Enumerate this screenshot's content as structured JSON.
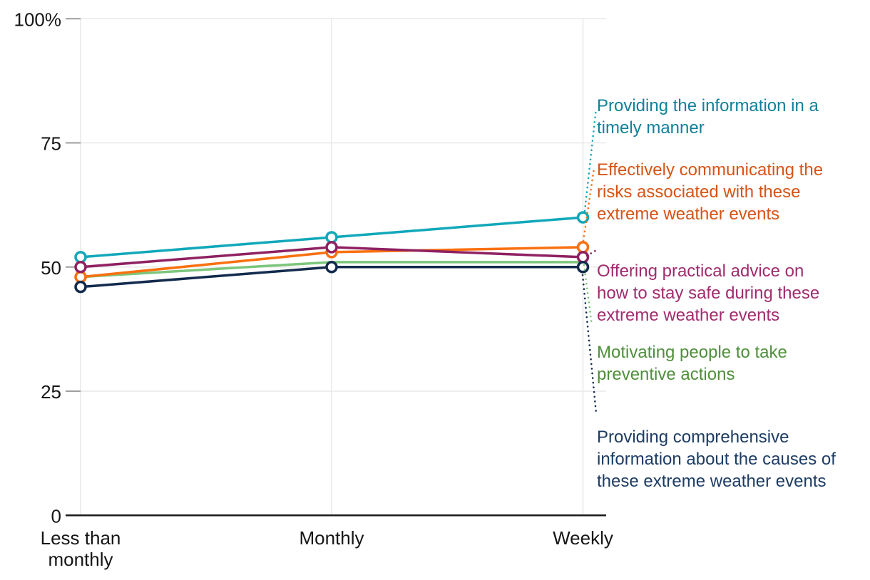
{
  "chart_data": {
    "type": "line",
    "title": "",
    "xlabel": "",
    "ylabel": "",
    "ylim": [
      0,
      100
    ],
    "grid": true,
    "legend_position": "right-annotations",
    "categories": [
      "Less than monthly",
      "Monthly",
      "Weekly"
    ],
    "category_label_lines": [
      [
        "Less than",
        "monthly"
      ],
      [
        "Monthly"
      ],
      [
        "Weekly"
      ]
    ],
    "x_positions": [
      113,
      465,
      817.5
    ],
    "y_ticks": [
      {
        "value": 100,
        "label": "100%"
      },
      {
        "value": 75,
        "label": "75"
      },
      {
        "value": 50,
        "label": "50"
      },
      {
        "value": 25,
        "label": "25"
      },
      {
        "value": 0,
        "label": "0"
      }
    ],
    "series": [
      {
        "name": "Providing the information in a timely manner",
        "values": [
          52,
          56,
          60
        ],
        "line_color": "#11a8ba",
        "label_color": "#12809b",
        "z": 1,
        "markers": true,
        "label_lines": [
          "Providing the information in a",
          "timely manner"
        ],
        "label_top": 133,
        "leader": [
          820,
          296,
          836,
          152
        ]
      },
      {
        "name": "Effectively communicating the risks associated with these extreme weather events",
        "values": [
          48,
          53,
          54
        ],
        "line_color": "#f9700f",
        "label_color": "#d65416",
        "z": 2,
        "markers": true,
        "label_lines": [
          "Effectively communicating the",
          "risks associated with these",
          "extreme weather events"
        ],
        "label_top": 223,
        "leader": [
          818,
          338,
          833,
          236
        ]
      },
      {
        "name": "Offering practical advice on how to stay safe during these extreme weather events",
        "values": [
          50,
          54,
          52
        ],
        "line_color": "#8f2161",
        "label_color": "#a02c6e",
        "z": 3,
        "markers": true,
        "label_lines": [
          "Offering practical advice on",
          "how to stay safe during these",
          "extreme weather events"
        ],
        "label_top": 365,
        "leader": [
          823,
          359,
          838,
          350
        ]
      },
      {
        "name": "Motivating people to take preventive actions",
        "values": [
          48,
          51,
          51
        ],
        "line_color": "#7cc67c",
        "label_color": "#4f8f3b",
        "z": 0,
        "markers": false,
        "label_lines": [
          "Motivating people to take",
          "preventive actions"
        ],
        "label_top": 479,
        "leader": [
          819,
          372,
          830,
          457
        ]
      },
      {
        "name": "Providing comprehensive information about the causes of these extreme weather events",
        "values": [
          46,
          50,
          50
        ],
        "line_color": "#122b4d",
        "label_color": "#1d3c63",
        "z": 4,
        "markers": true,
        "label_lines": [
          "Providing comprehensive",
          "information about the causes of",
          "these extreme weather events"
        ],
        "label_top": 598,
        "leader": [
          817,
          386,
          836,
          580
        ]
      }
    ],
    "axis": {
      "left": 92,
      "grid_left": 113,
      "right": 850,
      "top": 26.3,
      "bottom": 723.3,
      "tick_label_x": 86,
      "annotation_x": 837
    },
    "colors": {
      "gridline": "#e8e8e8",
      "tick": "#9e9e9e",
      "axis": "#1a1a1a",
      "text": "#161616",
      "background": "#ffffff"
    }
  }
}
